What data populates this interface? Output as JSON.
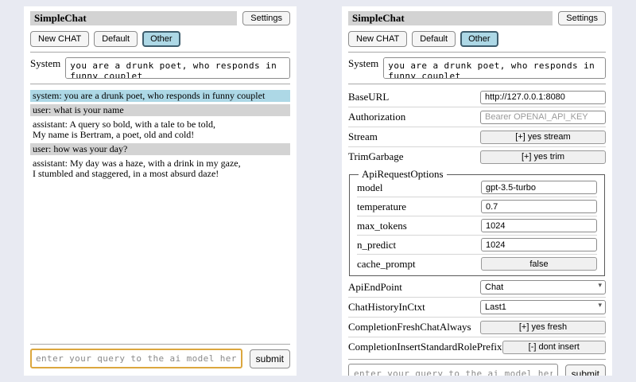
{
  "colors": {
    "page_bg": "#e8eaf2",
    "panel_bg": "#ffffff",
    "titlebar_bg": "#d3d3d3",
    "system_message_bg": "#add8e6",
    "user_message_bg": "#d3d3d3",
    "selected_session_bg": "#add8e6",
    "selected_session_border": "#3f5e6e",
    "query_focus_border": "#dca73e"
  },
  "header": {
    "title": "SimpleChat",
    "settings_label": "Settings",
    "sessions": [
      "New CHAT",
      "Default",
      "Other"
    ],
    "selected_session": "Other",
    "system_label": "System",
    "system_value": "you are a drunk poet, who responds in funny couplet"
  },
  "chat": {
    "messages": [
      {
        "role": "system",
        "text": "system: you are a drunk poet, who responds in funny couplet"
      },
      {
        "role": "user",
        "text": "user: what is your name"
      },
      {
        "role": "assistant",
        "text": "assistant: A query so bold, with a tale to be told,\nMy name is Bertram, a poet, old and cold!"
      },
      {
        "role": "user",
        "text": "user: how was your day?"
      },
      {
        "role": "assistant",
        "text": "assistant: My day was a haze, with a drink in my gaze,\nI stumbled and staggered, in a most absurd daze!"
      }
    ]
  },
  "settings": {
    "rows": [
      {
        "label": "BaseURL",
        "value": "http://127.0.0.1:8080"
      },
      {
        "label": "Authorization",
        "placeholder": "Bearer OPENAI_API_KEY"
      },
      {
        "label": "Stream",
        "value": "[+] yes stream"
      },
      {
        "label": "TrimGarbage",
        "value": "[+] yes trim"
      }
    ],
    "fieldset": {
      "legend": "ApiRequestOptions",
      "rows": [
        {
          "label": "model",
          "value": "gpt-3.5-turbo"
        },
        {
          "label": "temperature",
          "value": "0.7"
        },
        {
          "label": "max_tokens",
          "value": "1024"
        },
        {
          "label": "n_predict",
          "value": "1024"
        },
        {
          "label": "cache_prompt",
          "value": "false"
        }
      ]
    },
    "rows2": [
      {
        "label": "ApiEndPoint",
        "value": "Chat"
      },
      {
        "label": "ChatHistoryInCtxt",
        "value": "Last1"
      },
      {
        "label": "CompletionFreshChatAlways",
        "value": "[+] yes fresh"
      },
      {
        "label": "CompletionInsertStandardRolePrefix",
        "value": "[-] dont insert"
      }
    ]
  },
  "query": {
    "placeholder": "enter your query to the ai model here",
    "submit_label": "submit"
  }
}
